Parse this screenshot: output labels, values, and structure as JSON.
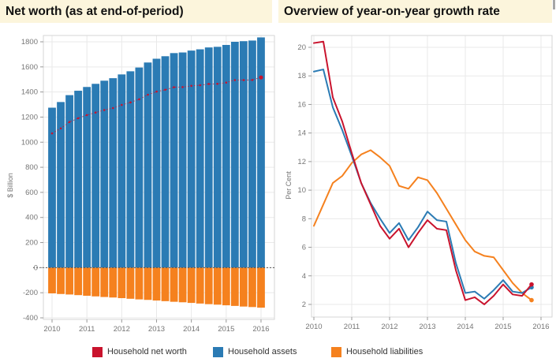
{
  "panels": {
    "left": {
      "title": "Net worth (as at end-of-period)",
      "ylabel": "$ Billion"
    },
    "right": {
      "title": "Overview of year-on-year growth rate",
      "ylabel": "Per Cent"
    }
  },
  "legend": {
    "items": [
      {
        "label": "Household net worth",
        "color": "#c9132d"
      },
      {
        "label": "Household assets",
        "color": "#2b7bb4"
      },
      {
        "label": "Household liabilities",
        "color": "#f5811e"
      }
    ]
  },
  "colors": {
    "title_bg": "#fcf5dc",
    "grid": "#e9e9e9",
    "panel_border": "#d6d6d6",
    "axis_text": "#767676",
    "zero_line": "#555555",
    "net_worth_red": "#c9132d",
    "assets_blue": "#2b7bb4",
    "liabilities_orange": "#f5811e"
  },
  "chart_data": [
    {
      "type": "bar",
      "title": "Net worth (as at end-of-period)",
      "xlabel": "",
      "ylabel": "$ Billion",
      "ylim": [
        -400,
        1800
      ],
      "yticks": [
        -400,
        -200,
        0,
        200,
        400,
        600,
        800,
        1000,
        1200,
        1400,
        1600,
        1800
      ],
      "xticks": [
        "2010",
        "2011",
        "2012",
        "2013",
        "2014",
        "2015",
        "2016"
      ],
      "grid": true,
      "zero_line": "dashed",
      "legend_position": "bottom",
      "categories": [
        "2010Q1",
        "2010Q2",
        "2010Q3",
        "2010Q4",
        "2011Q1",
        "2011Q2",
        "2011Q3",
        "2011Q4",
        "2012Q1",
        "2012Q2",
        "2012Q3",
        "2012Q4",
        "2013Q1",
        "2013Q2",
        "2013Q3",
        "2013Q4",
        "2014Q1",
        "2014Q2",
        "2014Q3",
        "2014Q4",
        "2015Q1",
        "2015Q2",
        "2015Q3",
        "2015Q4",
        "2016Q1"
      ],
      "series": [
        {
          "name": "Household assets",
          "style": "bar",
          "color": "#2b7bb4",
          "values": [
            1275,
            1320,
            1375,
            1410,
            1440,
            1465,
            1490,
            1510,
            1540,
            1565,
            1595,
            1635,
            1665,
            1685,
            1710,
            1715,
            1730,
            1740,
            1755,
            1760,
            1775,
            1800,
            1805,
            1810,
            1835
          ]
        },
        {
          "name": "Household liabilities",
          "style": "bar",
          "color": "#f5811e",
          "values": [
            -205,
            -210,
            -214,
            -219,
            -224,
            -229,
            -234,
            -238,
            -243,
            -248,
            -253,
            -257,
            -262,
            -267,
            -272,
            -276,
            -281,
            -286,
            -291,
            -295,
            -300,
            -305,
            -310,
            -314,
            -319
          ]
        },
        {
          "name": "Household net worth",
          "style": "point-line",
          "color": "#c9132d",
          "values": [
            1070,
            1110,
            1161,
            1191,
            1216,
            1236,
            1256,
            1272,
            1297,
            1317,
            1342,
            1378,
            1403,
            1418,
            1438,
            1439,
            1449,
            1454,
            1464,
            1465,
            1475,
            1495,
            1495,
            1496,
            1516
          ]
        }
      ]
    },
    {
      "type": "line",
      "title": "Overview of year-on-year growth rate",
      "xlabel": "",
      "ylabel": "Per Cent",
      "ylim": [
        0.5,
        21
      ],
      "yticks": [
        2,
        4,
        6,
        8,
        10,
        12,
        14,
        16,
        18,
        20
      ],
      "xticks": [
        "2010",
        "2011",
        "2012",
        "2013",
        "2014",
        "2015",
        "2016"
      ],
      "grid": true,
      "legend_position": "bottom",
      "categories": [
        "2010Q1",
        "2010Q2",
        "2010Q3",
        "2010Q4",
        "2011Q1",
        "2011Q2",
        "2011Q3",
        "2011Q4",
        "2012Q1",
        "2012Q2",
        "2012Q3",
        "2012Q4",
        "2013Q1",
        "2013Q2",
        "2013Q3",
        "2013Q4",
        "2014Q1",
        "2014Q2",
        "2014Q3",
        "2014Q4",
        "2015Q1",
        "2015Q2",
        "2015Q3",
        "2015Q4"
      ],
      "series": [
        {
          "name": "Household liabilities",
          "color": "#f5811e",
          "end_dot": true,
          "values": [
            7.5,
            9.0,
            10.5,
            11.0,
            11.9,
            12.5,
            12.8,
            12.3,
            11.7,
            10.3,
            10.1,
            10.9,
            10.7,
            9.8,
            8.7,
            7.6,
            6.5,
            5.7,
            5.4,
            5.3,
            4.4,
            3.5,
            2.8,
            2.3
          ]
        },
        {
          "name": "Household assets",
          "color": "#2b7bb4",
          "end_dot": true,
          "values": [
            18.3,
            18.45,
            15.8,
            14.2,
            12.4,
            10.5,
            9.1,
            8.0,
            7.0,
            7.7,
            6.5,
            7.4,
            8.5,
            7.9,
            7.8,
            4.9,
            2.8,
            2.9,
            2.4,
            3.0,
            3.7,
            2.9,
            2.8,
            3.2
          ]
        },
        {
          "name": "Household net worth",
          "color": "#c9132d",
          "end_dot": true,
          "values": [
            20.3,
            20.4,
            16.5,
            14.8,
            12.6,
            10.5,
            9.0,
            7.5,
            6.6,
            7.3,
            6.0,
            7.0,
            7.9,
            7.3,
            7.2,
            4.4,
            2.3,
            2.5,
            2.0,
            2.6,
            3.4,
            2.7,
            2.6,
            3.4
          ]
        }
      ]
    }
  ]
}
